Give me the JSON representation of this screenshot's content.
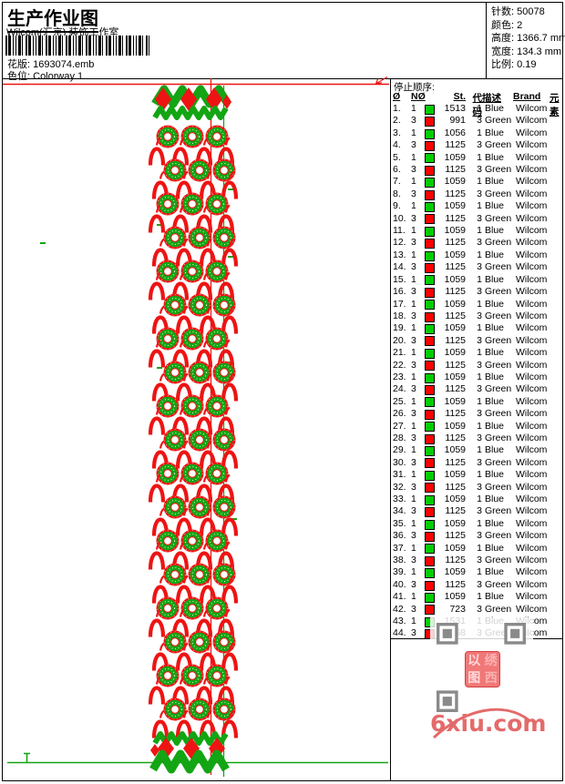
{
  "header": {
    "title": "生产作业图",
    "studio": "Wilcom(汇京) 装饰工作室",
    "design_label": "花版:",
    "design_file": "1693074.emb",
    "colorway_label": "色位:",
    "colorway_value": "Colorway 1"
  },
  "info": {
    "stitches_label": "针数:",
    "stitches": "50078",
    "colors_label": "颜色:",
    "colors": "2",
    "height_label": "高度:",
    "height": "1366.7 mm",
    "width_label": "宽度:",
    "width": "134.3 mm",
    "scale_label": "比例:",
    "scale": "0.19"
  },
  "stop_sequence": {
    "title": "停止顺序:",
    "columns": [
      "Ø",
      "NØ",
      "St.",
      "代码",
      "描述",
      "Brand",
      "元素"
    ],
    "rows": [
      {
        "seq": "1.",
        "n": "1",
        "swatch": "green",
        "st": "1513",
        "code": "1",
        "desc": "Blue",
        "brand": "Wilcom"
      },
      {
        "seq": "2.",
        "n": "3",
        "swatch": "red",
        "st": "991",
        "code": "3",
        "desc": "Green",
        "brand": "Wilcom"
      },
      {
        "seq": "3.",
        "n": "1",
        "swatch": "green",
        "st": "1056",
        "code": "1",
        "desc": "Blue",
        "brand": "Wilcom"
      },
      {
        "seq": "4.",
        "n": "3",
        "swatch": "red",
        "st": "1125",
        "code": "3",
        "desc": "Green",
        "brand": "Wilcom"
      },
      {
        "seq": "5.",
        "n": "1",
        "swatch": "green",
        "st": "1059",
        "code": "1",
        "desc": "Blue",
        "brand": "Wilcom"
      },
      {
        "seq": "6.",
        "n": "3",
        "swatch": "red",
        "st": "1125",
        "code": "3",
        "desc": "Green",
        "brand": "Wilcom"
      },
      {
        "seq": "7.",
        "n": "1",
        "swatch": "green",
        "st": "1059",
        "code": "1",
        "desc": "Blue",
        "brand": "Wilcom"
      },
      {
        "seq": "8.",
        "n": "3",
        "swatch": "red",
        "st": "1125",
        "code": "3",
        "desc": "Green",
        "brand": "Wilcom"
      },
      {
        "seq": "9.",
        "n": "1",
        "swatch": "green",
        "st": "1059",
        "code": "1",
        "desc": "Blue",
        "brand": "Wilcom"
      },
      {
        "seq": "10.",
        "n": "3",
        "swatch": "red",
        "st": "1125",
        "code": "3",
        "desc": "Green",
        "brand": "Wilcom"
      },
      {
        "seq": "11.",
        "n": "1",
        "swatch": "green",
        "st": "1059",
        "code": "1",
        "desc": "Blue",
        "brand": "Wilcom"
      },
      {
        "seq": "12.",
        "n": "3",
        "swatch": "red",
        "st": "1125",
        "code": "3",
        "desc": "Green",
        "brand": "Wilcom"
      },
      {
        "seq": "13.",
        "n": "1",
        "swatch": "green",
        "st": "1059",
        "code": "1",
        "desc": "Blue",
        "brand": "Wilcom"
      },
      {
        "seq": "14.",
        "n": "3",
        "swatch": "red",
        "st": "1125",
        "code": "3",
        "desc": "Green",
        "brand": "Wilcom"
      },
      {
        "seq": "15.",
        "n": "1",
        "swatch": "green",
        "st": "1059",
        "code": "1",
        "desc": "Blue",
        "brand": "Wilcom"
      },
      {
        "seq": "16.",
        "n": "3",
        "swatch": "red",
        "st": "1125",
        "code": "3",
        "desc": "Green",
        "brand": "Wilcom"
      },
      {
        "seq": "17.",
        "n": "1",
        "swatch": "green",
        "st": "1059",
        "code": "1",
        "desc": "Blue",
        "brand": "Wilcom"
      },
      {
        "seq": "18.",
        "n": "3",
        "swatch": "red",
        "st": "1125",
        "code": "3",
        "desc": "Green",
        "brand": "Wilcom"
      },
      {
        "seq": "19.",
        "n": "1",
        "swatch": "green",
        "st": "1059",
        "code": "1",
        "desc": "Blue",
        "brand": "Wilcom"
      },
      {
        "seq": "20.",
        "n": "3",
        "swatch": "red",
        "st": "1125",
        "code": "3",
        "desc": "Green",
        "brand": "Wilcom"
      },
      {
        "seq": "21.",
        "n": "1",
        "swatch": "green",
        "st": "1059",
        "code": "1",
        "desc": "Blue",
        "brand": "Wilcom"
      },
      {
        "seq": "22.",
        "n": "3",
        "swatch": "red",
        "st": "1125",
        "code": "3",
        "desc": "Green",
        "brand": "Wilcom"
      },
      {
        "seq": "23.",
        "n": "1",
        "swatch": "green",
        "st": "1059",
        "code": "1",
        "desc": "Blue",
        "brand": "Wilcom"
      },
      {
        "seq": "24.",
        "n": "3",
        "swatch": "red",
        "st": "1125",
        "code": "3",
        "desc": "Green",
        "brand": "Wilcom"
      },
      {
        "seq": "25.",
        "n": "1",
        "swatch": "green",
        "st": "1059",
        "code": "1",
        "desc": "Blue",
        "brand": "Wilcom"
      },
      {
        "seq": "26.",
        "n": "3",
        "swatch": "red",
        "st": "1125",
        "code": "3",
        "desc": "Green",
        "brand": "Wilcom"
      },
      {
        "seq": "27.",
        "n": "1",
        "swatch": "green",
        "st": "1059",
        "code": "1",
        "desc": "Blue",
        "brand": "Wilcom"
      },
      {
        "seq": "28.",
        "n": "3",
        "swatch": "red",
        "st": "1125",
        "code": "3",
        "desc": "Green",
        "brand": "Wilcom"
      },
      {
        "seq": "29.",
        "n": "1",
        "swatch": "green",
        "st": "1059",
        "code": "1",
        "desc": "Blue",
        "brand": "Wilcom"
      },
      {
        "seq": "30.",
        "n": "3",
        "swatch": "red",
        "st": "1125",
        "code": "3",
        "desc": "Green",
        "brand": "Wilcom"
      },
      {
        "seq": "31.",
        "n": "1",
        "swatch": "green",
        "st": "1059",
        "code": "1",
        "desc": "Blue",
        "brand": "Wilcom"
      },
      {
        "seq": "32.",
        "n": "3",
        "swatch": "red",
        "st": "1125",
        "code": "3",
        "desc": "Green",
        "brand": "Wilcom"
      },
      {
        "seq": "33.",
        "n": "1",
        "swatch": "green",
        "st": "1059",
        "code": "1",
        "desc": "Blue",
        "brand": "Wilcom"
      },
      {
        "seq": "34.",
        "n": "3",
        "swatch": "red",
        "st": "1125",
        "code": "3",
        "desc": "Green",
        "brand": "Wilcom"
      },
      {
        "seq": "35.",
        "n": "1",
        "swatch": "green",
        "st": "1059",
        "code": "1",
        "desc": "Blue",
        "brand": "Wilcom"
      },
      {
        "seq": "36.",
        "n": "3",
        "swatch": "red",
        "st": "1125",
        "code": "3",
        "desc": "Green",
        "brand": "Wilcom"
      },
      {
        "seq": "37.",
        "n": "1",
        "swatch": "green",
        "st": "1059",
        "code": "1",
        "desc": "Blue",
        "brand": "Wilcom"
      },
      {
        "seq": "38.",
        "n": "3",
        "swatch": "red",
        "st": "1125",
        "code": "3",
        "desc": "Green",
        "brand": "Wilcom"
      },
      {
        "seq": "39.",
        "n": "1",
        "swatch": "green",
        "st": "1059",
        "code": "1",
        "desc": "Blue",
        "brand": "Wilcom"
      },
      {
        "seq": "40.",
        "n": "3",
        "swatch": "red",
        "st": "1125",
        "code": "3",
        "desc": "Green",
        "brand": "Wilcom"
      },
      {
        "seq": "41.",
        "n": "1",
        "swatch": "green",
        "st": "1059",
        "code": "1",
        "desc": "Blue",
        "brand": "Wilcom"
      },
      {
        "seq": "42.",
        "n": "3",
        "swatch": "red",
        "st": "723",
        "code": "3",
        "desc": "Green",
        "brand": "Wilcom"
      },
      {
        "seq": "43.",
        "n": "1",
        "swatch": "green",
        "st": "1531",
        "code": "1",
        "desc": "Blue",
        "brand": "Wilcom"
      },
      {
        "seq": "44.",
        "n": "3",
        "swatch": "red",
        "st": "2768",
        "code": "3",
        "desc": "Green",
        "brand": "Wilcom"
      }
    ]
  },
  "watermark": {
    "site": "6xiu.com",
    "stamp_chars": [
      "以",
      "绣",
      "图",
      "西"
    ]
  },
  "colors": {
    "stitch_red": "#ee1414",
    "stitch_green": "#13a513",
    "swatch_green": "#00cc00",
    "swatch_red": "#ff0000",
    "watermark_red": "#e46a6a",
    "qr_gray": "#8a8a8a"
  }
}
